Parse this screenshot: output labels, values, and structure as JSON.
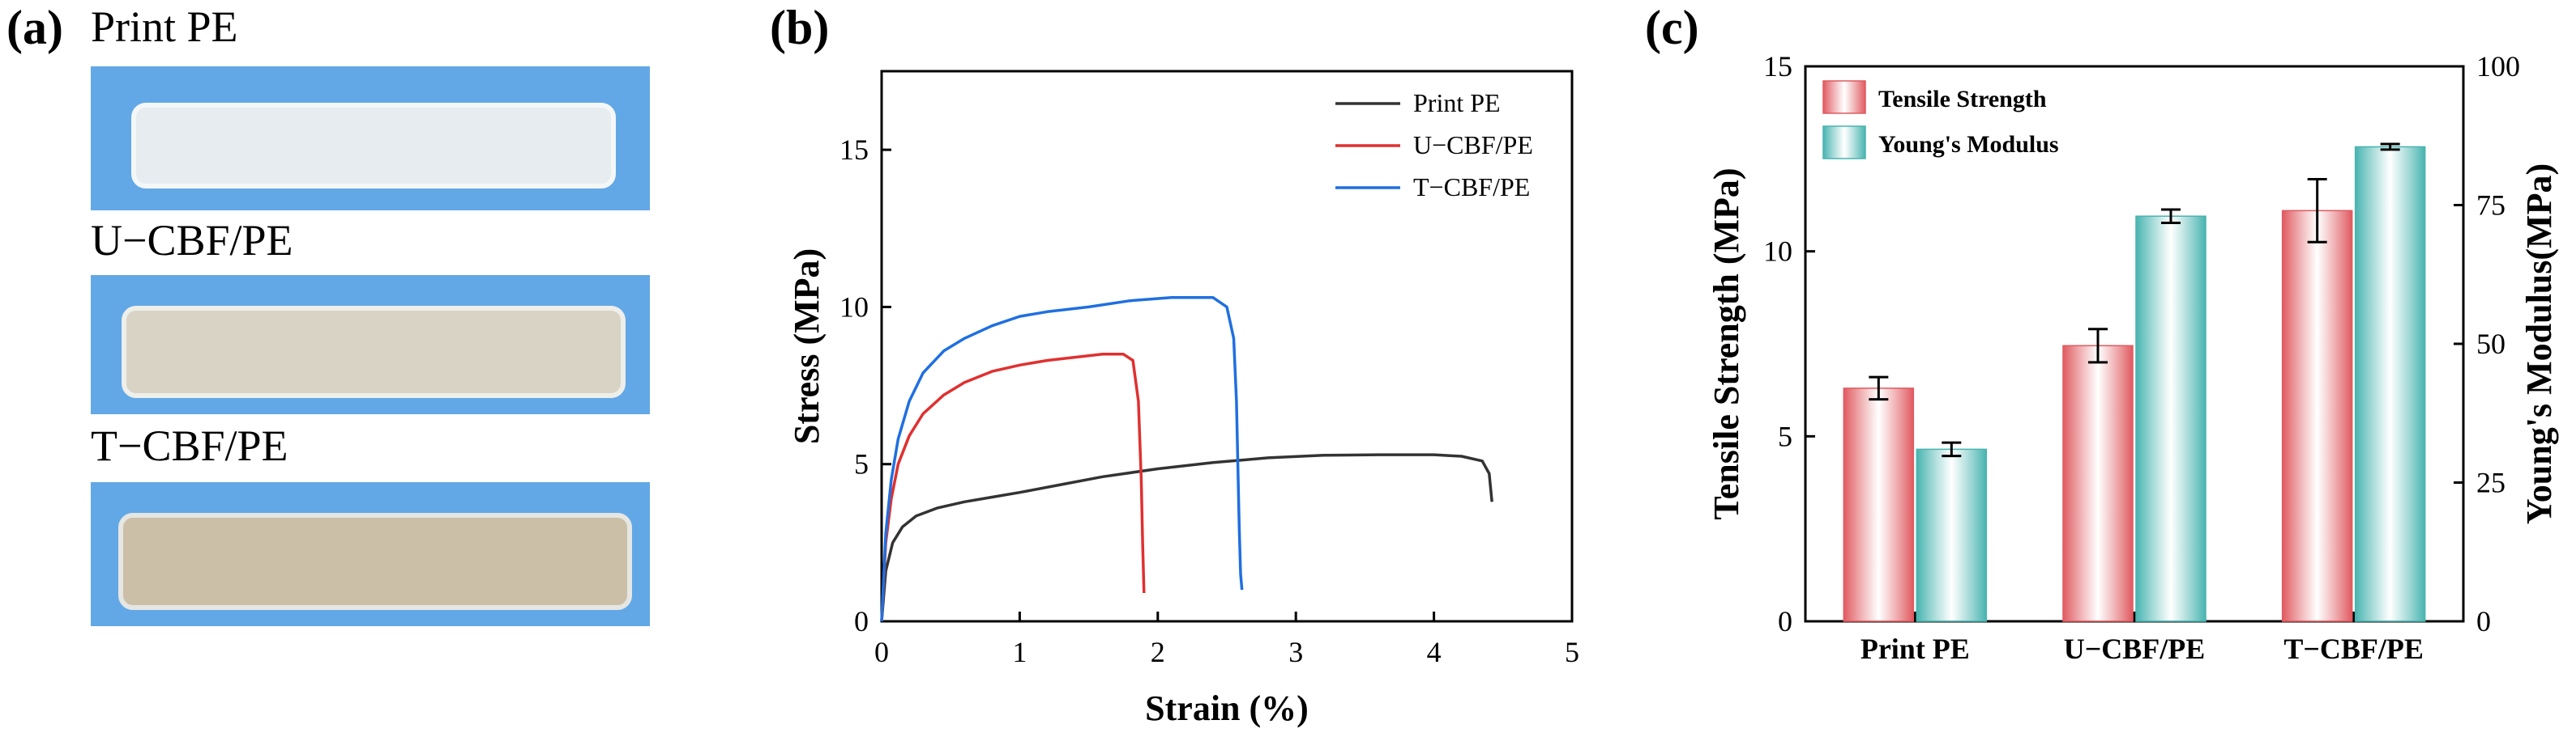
{
  "panel_a": {
    "label": "(a)",
    "samples": [
      {
        "name": "Print PE",
        "color": "#e6ecef",
        "edge": "#f4f7f8"
      },
      {
        "name": "U−CBF/PE",
        "color": "#d8d3c4",
        "edge": "#eeeeea"
      },
      {
        "name": "T−CBF/PE",
        "color": "#cbbfa8",
        "edge": "#e6e6e2"
      }
    ],
    "background_color": "#62a8e6"
  },
  "chart_data": [
    {
      "panel_label": "(b)",
      "type": "line",
      "xlabel": "Strain (%)",
      "ylabel": "Stress (MPa)",
      "xlim": [
        0,
        5
      ],
      "ylim": [
        0,
        17.5
      ],
      "xticks": [
        0,
        1,
        2,
        3,
        4,
        5
      ],
      "yticks": [
        0,
        5,
        10,
        15
      ],
      "legend_position": "top-right",
      "series": [
        {
          "name": "Print PE",
          "color": "#333333",
          "x": [
            0,
            0.03,
            0.08,
            0.15,
            0.25,
            0.4,
            0.6,
            0.8,
            1.0,
            1.3,
            1.6,
            2.0,
            2.4,
            2.8,
            3.2,
            3.6,
            4.0,
            4.2,
            4.35,
            4.4,
            4.42
          ],
          "y": [
            0,
            1.6,
            2.5,
            3.0,
            3.35,
            3.6,
            3.8,
            3.95,
            4.1,
            4.35,
            4.6,
            4.85,
            5.05,
            5.2,
            5.28,
            5.3,
            5.3,
            5.25,
            5.1,
            4.7,
            3.8
          ]
        },
        {
          "name": "U−CBF/PE",
          "color": "#e03030",
          "x": [
            0,
            0.03,
            0.07,
            0.12,
            0.2,
            0.3,
            0.45,
            0.6,
            0.8,
            1.0,
            1.2,
            1.4,
            1.6,
            1.75,
            1.82,
            1.86,
            1.88,
            1.89,
            1.9
          ],
          "y": [
            0,
            2.5,
            3.9,
            5.0,
            5.9,
            6.6,
            7.2,
            7.6,
            7.95,
            8.15,
            8.3,
            8.4,
            8.5,
            8.5,
            8.3,
            7.0,
            4.5,
            2.5,
            0.9
          ]
        },
        {
          "name": "T−CBF/PE",
          "color": "#1f6fe0",
          "x": [
            0,
            0.03,
            0.07,
            0.12,
            0.2,
            0.3,
            0.45,
            0.6,
            0.8,
            1.0,
            1.2,
            1.5,
            1.8,
            2.1,
            2.4,
            2.5,
            2.55,
            2.57,
            2.59,
            2.6,
            2.61
          ],
          "y": [
            0,
            2.8,
            4.5,
            5.8,
            7.0,
            7.9,
            8.6,
            9.0,
            9.4,
            9.7,
            9.85,
            10.0,
            10.2,
            10.3,
            10.3,
            10.0,
            9.0,
            7.0,
            3.0,
            1.5,
            1.0
          ]
        }
      ]
    },
    {
      "panel_label": "(c)",
      "type": "bar",
      "categories": [
        "Print PE",
        "U−CBF/PE",
        "T−CBF/PE"
      ],
      "ylabel": "Tensile Strength (MPa)",
      "y2label": "Young's Modulus(MPa)",
      "ylim": [
        0,
        15
      ],
      "y2lim": [
        0,
        100
      ],
      "yticks": [
        0,
        5,
        10,
        15
      ],
      "y2ticks": [
        0,
        25,
        50,
        75,
        100
      ],
      "legend_position": "top-left",
      "series": [
        {
          "name": "Tensile Strength",
          "axis": "left",
          "color": "#e05a60",
          "values": [
            6.3,
            7.45,
            11.1
          ],
          "errors": [
            0.3,
            0.45,
            0.85
          ]
        },
        {
          "name": "Young's Modulus",
          "axis": "right",
          "color": "#48b4b0",
          "values": [
            31,
            73,
            85.5
          ],
          "errors": [
            1.2,
            1.2,
            0.5
          ]
        }
      ]
    }
  ]
}
